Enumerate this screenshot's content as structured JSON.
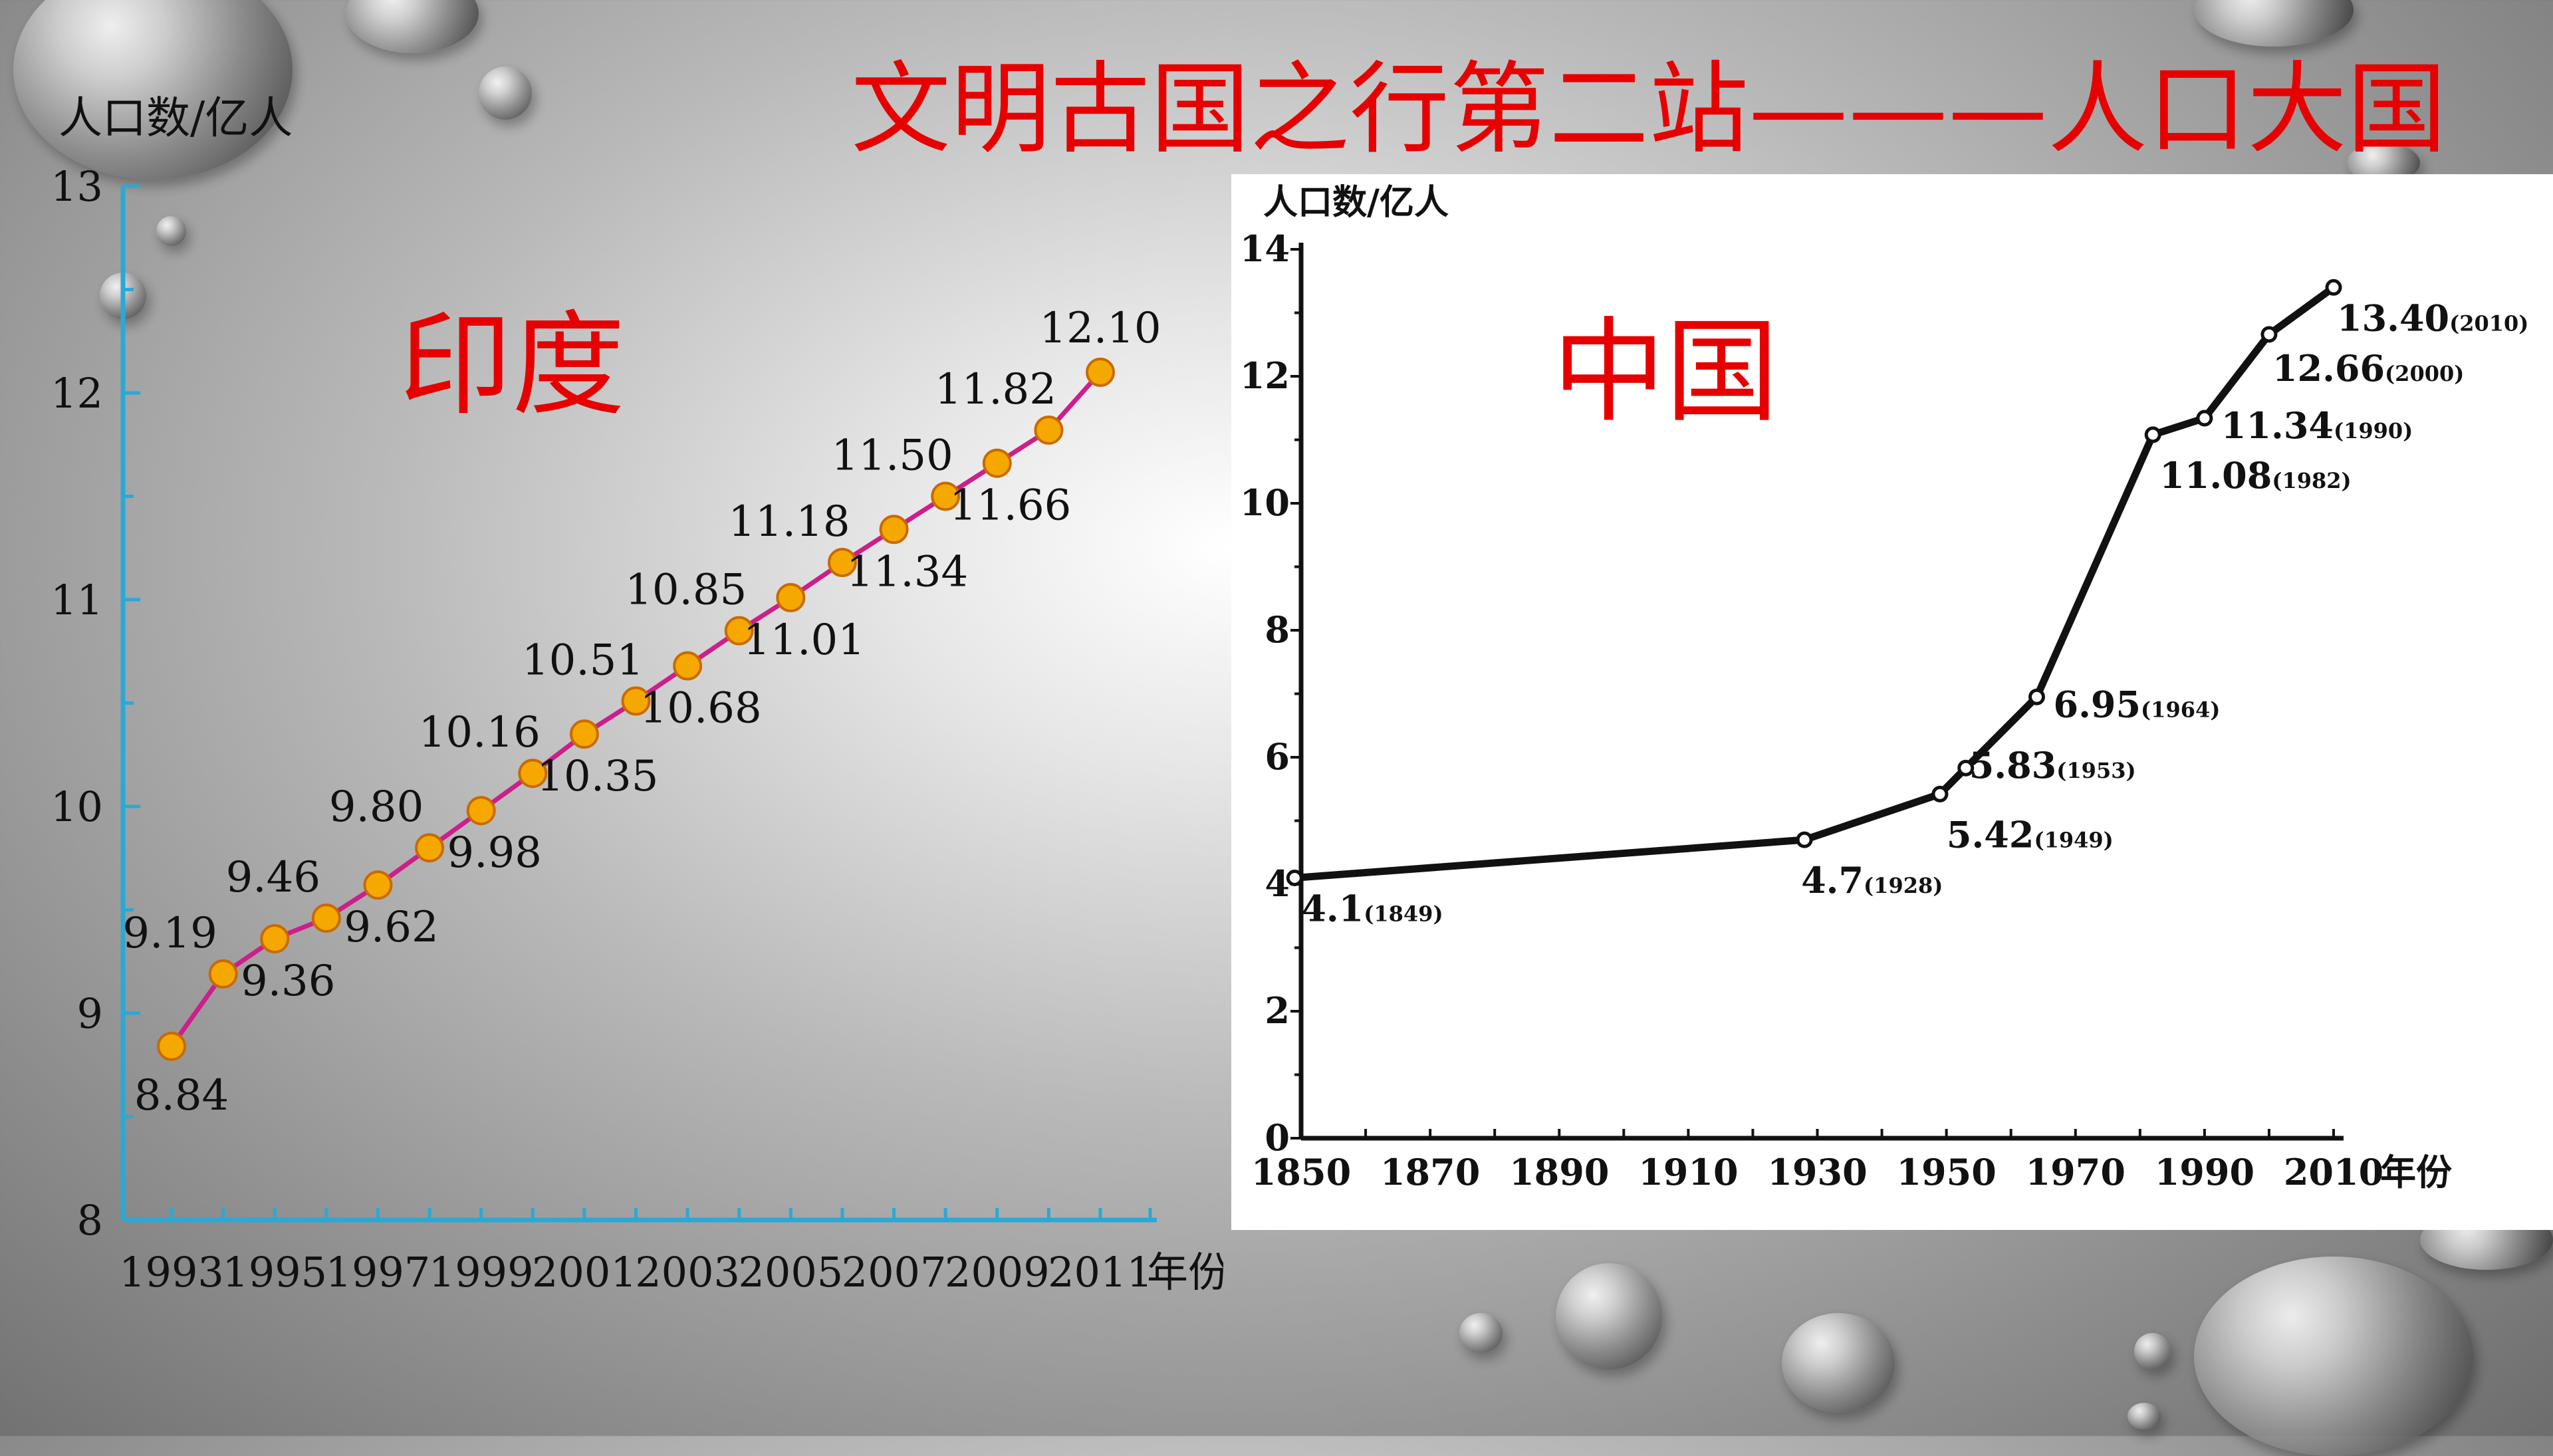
{
  "slide_title": "文明古国之行第二站———人口大国",
  "india_label": "印度",
  "china_label": "中国",
  "chart_data": [
    {
      "type": "line",
      "ylabel": "人口数/亿人",
      "xlabel": "年份",
      "x": [
        1993,
        1994,
        1995,
        1996,
        1997,
        1998,
        1999,
        2000,
        2001,
        2002,
        2003,
        2004,
        2005,
        2006,
        2007,
        2008,
        2009,
        2010,
        2011
      ],
      "values": [
        8.84,
        9.19,
        9.36,
        9.46,
        9.62,
        9.8,
        9.98,
        10.16,
        10.35,
        10.51,
        10.68,
        10.85,
        11.01,
        11.18,
        11.34,
        11.5,
        11.66,
        11.82,
        12.1
      ],
      "data_labels": [
        "8.84",
        "9.19",
        "9.36",
        "9.46",
        "9.62",
        "9.80",
        "9.98",
        "10.16",
        "10.35",
        "10.51",
        "10.68",
        "10.85",
        "11.01",
        "11.18",
        "11.34",
        "11.50",
        "11.66",
        "11.82",
        "12.10"
      ],
      "xticks": [
        "1993",
        "1995",
        "1997",
        "1999",
        "2001",
        "2003",
        "2005",
        "2007",
        "2009",
        "2011"
      ],
      "yticks": [
        "8",
        "9",
        "10",
        "11",
        "12",
        "13"
      ],
      "ylim": [
        8,
        13
      ],
      "xlim": [
        1993,
        2011
      ],
      "line_color": "#cc1f8a",
      "marker_color": "#f5a800",
      "axis_color": "#2aa9d6"
    },
    {
      "type": "line",
      "ylabel": "人口数/亿人",
      "xlabel": "年份",
      "x": [
        1849,
        1928,
        1949,
        1953,
        1964,
        1982,
        1990,
        2000,
        2010
      ],
      "values": [
        4.1,
        4.7,
        5.42,
        5.83,
        6.95,
        11.08,
        11.34,
        12.66,
        13.4
      ],
      "data_labels": [
        {
          "value": "4.1",
          "year": "(1849)"
        },
        {
          "value": "4.7",
          "year": "(1928)"
        },
        {
          "value": "5.42",
          "year": "(1949)"
        },
        {
          "value": "5.83",
          "year": "(1953)"
        },
        {
          "value": "6.95",
          "year": "(1964)"
        },
        {
          "value": "11.08",
          "year": "(1982)"
        },
        {
          "value": "11.34",
          "year": "(1990)"
        },
        {
          "value": "12.66",
          "year": "(2000)"
        },
        {
          "value": "13.40",
          "year": "(2010)"
        }
      ],
      "xticks": [
        "1850",
        "1870",
        "1890",
        "1910",
        "1930",
        "1950",
        "1970",
        "1990",
        "2010"
      ],
      "yticks": [
        "0",
        "2",
        "4",
        "6",
        "8",
        "10",
        "12",
        "14"
      ],
      "ylim": [
        0,
        14
      ],
      "xlim": [
        1850,
        2010
      ],
      "line_color": "#111111"
    }
  ]
}
